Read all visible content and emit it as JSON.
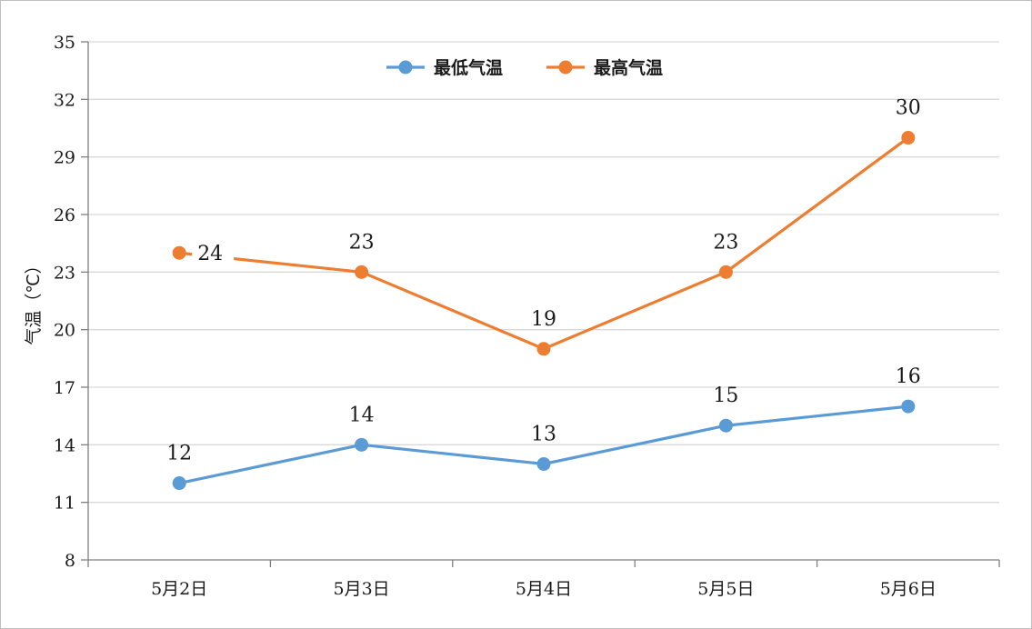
{
  "chart_data": {
    "type": "line",
    "title": "",
    "xlabel": "",
    "ylabel": "气温（℃）",
    "categories": [
      "5月2日",
      "5月3日",
      "5月4日",
      "5月5日",
      "5月6日"
    ],
    "series": [
      {
        "name": "最低气温",
        "values": [
          12,
          14,
          13,
          15,
          16
        ],
        "color": "#5b9bd5"
      },
      {
        "name": "最高气温",
        "values": [
          24,
          23,
          19,
          23,
          30
        ],
        "color": "#ed7d31"
      }
    ],
    "ylim": [
      8,
      35
    ],
    "yticks": [
      8,
      11,
      14,
      17,
      20,
      23,
      26,
      29,
      32,
      35
    ],
    "grid": true,
    "legend": "top-center",
    "data_labels": true,
    "colors": {
      "gridline": "#d9d9d9",
      "axis": "#7f7f7f",
      "text": "#1a1a1a"
    }
  }
}
